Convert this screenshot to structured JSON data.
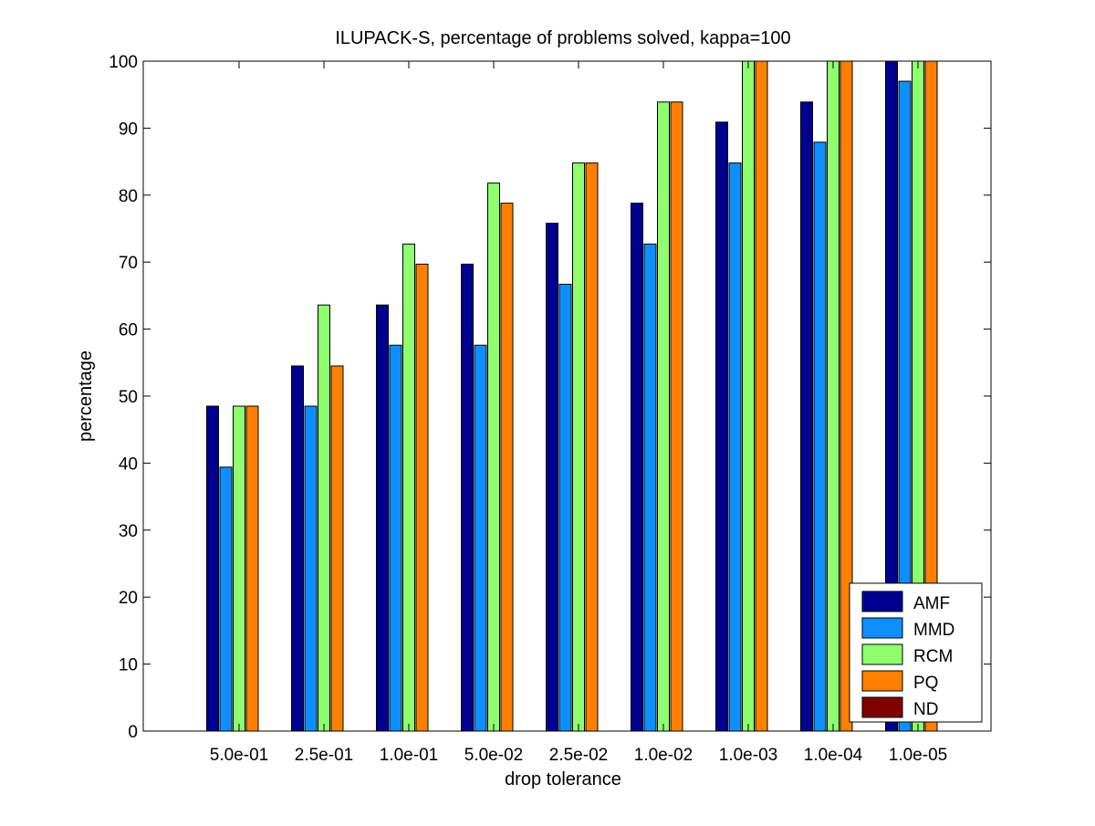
{
  "chart_data": {
    "type": "bar",
    "title": "ILUPACK-S, percentage of problems solved, kappa=100",
    "xlabel": "drop tolerance",
    "ylabel": "percentage",
    "ylim": [
      0,
      100
    ],
    "yticks": [
      0,
      10,
      20,
      30,
      40,
      50,
      60,
      70,
      80,
      90,
      100
    ],
    "categories": [
      "5.0e-01",
      "2.5e-01",
      "1.0e-01",
      "5.0e-02",
      "2.5e-02",
      "1.0e-02",
      "1.0e-03",
      "1.0e-04",
      "1.0e-05"
    ],
    "series": [
      {
        "name": "AMF",
        "color": "#00008f",
        "values": [
          48.5,
          54.5,
          63.6,
          69.7,
          75.8,
          78.8,
          90.9,
          93.9,
          100
        ]
      },
      {
        "name": "MMD",
        "color": "#0f8fff",
        "values": [
          39.4,
          48.5,
          57.6,
          57.6,
          66.7,
          72.7,
          84.8,
          87.9,
          97
        ]
      },
      {
        "name": "RCM",
        "color": "#8fff70",
        "values": [
          48.5,
          63.6,
          72.7,
          81.8,
          84.8,
          93.9,
          100,
          100,
          100
        ]
      },
      {
        "name": "PQ",
        "color": "#ff8000",
        "values": [
          48.5,
          54.5,
          69.7,
          78.8,
          84.8,
          93.9,
          100,
          100,
          100
        ]
      },
      {
        "name": "ND",
        "color": "#800000",
        "values": [
          0,
          0,
          0,
          0,
          0,
          0,
          0,
          0,
          0
        ]
      }
    ],
    "grid": false,
    "legend_position": "bottom-right"
  }
}
